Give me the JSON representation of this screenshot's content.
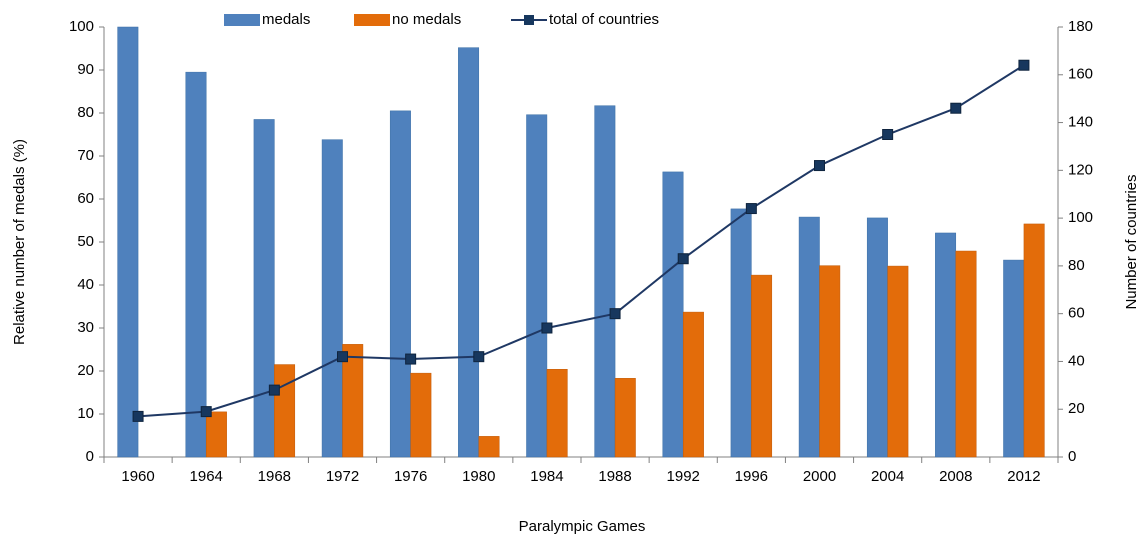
{
  "chart_data": {
    "type": "bar",
    "x_label": "Paralympic Games",
    "y_label": "Relative number of medals (%)",
    "y2_label": "Number of countries",
    "categories": [
      "1960",
      "1964",
      "1968",
      "1972",
      "1976",
      "1980",
      "1984",
      "1988",
      "1992",
      "1996",
      "2000",
      "2004",
      "2008",
      "2012"
    ],
    "series": [
      {
        "name": "medals",
        "color": "#4f81bd",
        "values": [
          100,
          89.5,
          78.5,
          73.8,
          80.5,
          95.2,
          79.6,
          81.7,
          66.3,
          57.7,
          55.8,
          55.6,
          52.1,
          45.8
        ]
      },
      {
        "name": "no medals",
        "color": "#e36c0a",
        "values": [
          0,
          10.5,
          21.5,
          26.2,
          19.5,
          4.8,
          20.4,
          18.3,
          33.7,
          42.3,
          44.5,
          44.4,
          47.9,
          54.2
        ]
      },
      {
        "name": "total of countries",
        "color": "#1f3864",
        "type": "line",
        "axis": "y2",
        "values": [
          17,
          19,
          28,
          42,
          41,
          42,
          54,
          60,
          83,
          104,
          122,
          135,
          146,
          164
        ]
      }
    ],
    "ylim": [
      0,
      100
    ],
    "yticks": [
      0,
      10,
      20,
      30,
      40,
      50,
      60,
      70,
      80,
      90,
      100
    ],
    "y2lim": [
      0,
      180
    ],
    "y2ticks": [
      0,
      20,
      40,
      60,
      80,
      100,
      120,
      140,
      160,
      180
    ],
    "legend": "top"
  }
}
